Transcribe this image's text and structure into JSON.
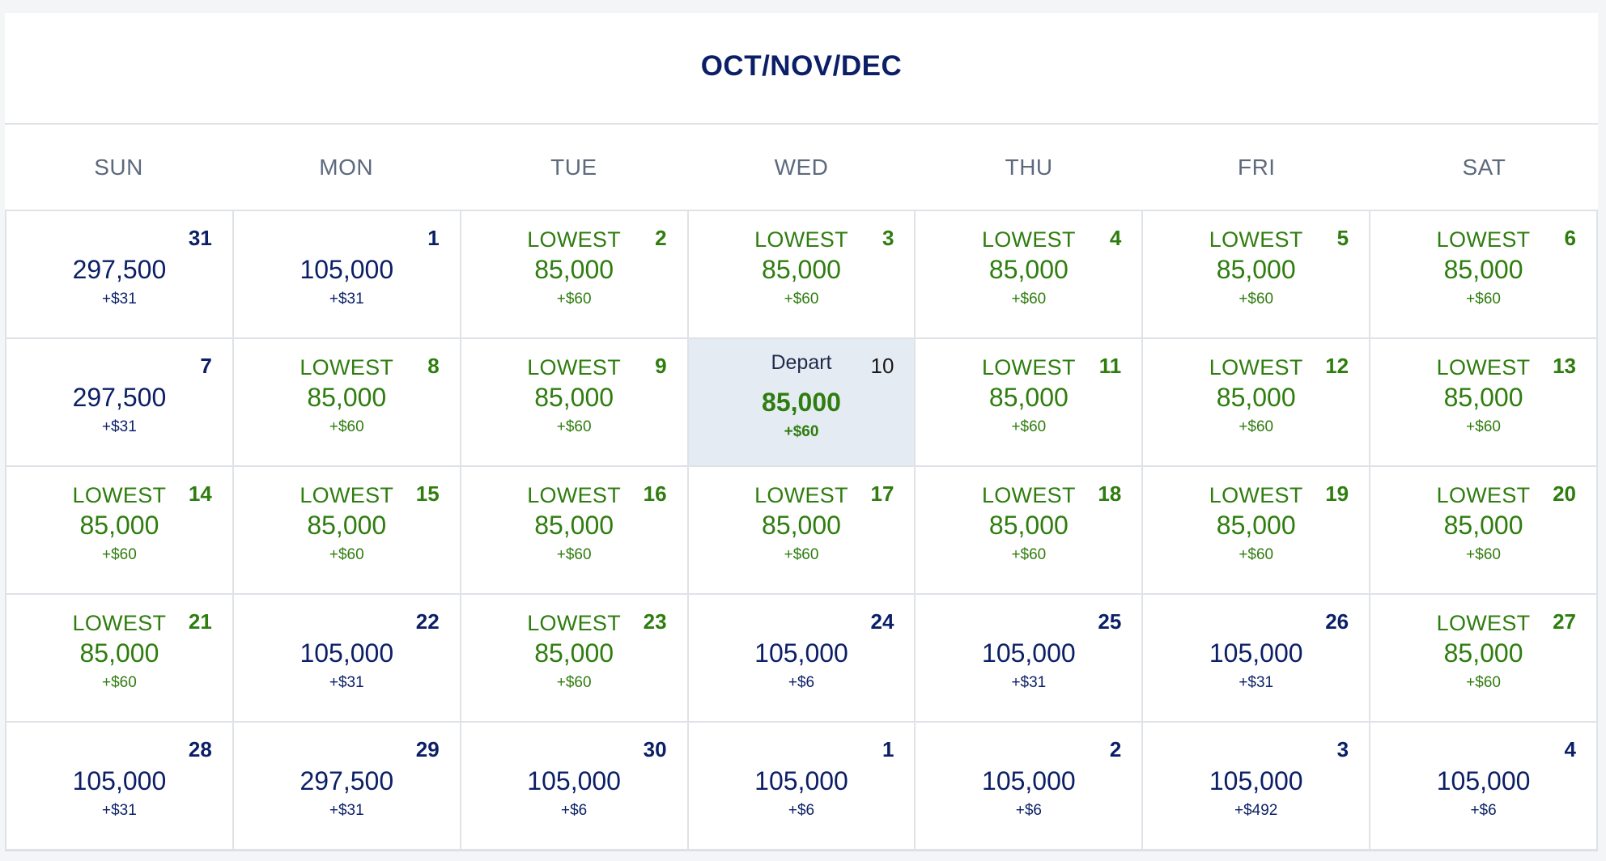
{
  "calendar": {
    "title": "OCT/NOV/DEC",
    "weekdays": [
      "SUN",
      "MON",
      "TUE",
      "WED",
      "THU",
      "FRI",
      "SAT"
    ],
    "lowest_label": "LOWEST",
    "depart_label": "Depart",
    "colors": {
      "title": "#0b1f66",
      "lowest": "#2f7d0f",
      "regular": "#0b1f66",
      "selected_bg": "#e5ebf3"
    },
    "weeks": [
      [
        {
          "day": "31",
          "points": "297,500",
          "fee": "+$31",
          "lowest": false
        },
        {
          "day": "1",
          "points": "105,000",
          "fee": "+$31",
          "lowest": false
        },
        {
          "day": "2",
          "points": "85,000",
          "fee": "+$60",
          "lowest": true
        },
        {
          "day": "3",
          "points": "85,000",
          "fee": "+$60",
          "lowest": true
        },
        {
          "day": "4",
          "points": "85,000",
          "fee": "+$60",
          "lowest": true
        },
        {
          "day": "5",
          "points": "85,000",
          "fee": "+$60",
          "lowest": true
        },
        {
          "day": "6",
          "points": "85,000",
          "fee": "+$60",
          "lowest": true
        }
      ],
      [
        {
          "day": "7",
          "points": "297,500",
          "fee": "+$31",
          "lowest": false
        },
        {
          "day": "8",
          "points": "85,000",
          "fee": "+$60",
          "lowest": true
        },
        {
          "day": "9",
          "points": "85,000",
          "fee": "+$60",
          "lowest": true
        },
        {
          "day": "10",
          "points": "85,000",
          "fee": "+$60",
          "lowest": false,
          "selected": true
        },
        {
          "day": "11",
          "points": "85,000",
          "fee": "+$60",
          "lowest": true
        },
        {
          "day": "12",
          "points": "85,000",
          "fee": "+$60",
          "lowest": true
        },
        {
          "day": "13",
          "points": "85,000",
          "fee": "+$60",
          "lowest": true
        }
      ],
      [
        {
          "day": "14",
          "points": "85,000",
          "fee": "+$60",
          "lowest": true
        },
        {
          "day": "15",
          "points": "85,000",
          "fee": "+$60",
          "lowest": true
        },
        {
          "day": "16",
          "points": "85,000",
          "fee": "+$60",
          "lowest": true
        },
        {
          "day": "17",
          "points": "85,000",
          "fee": "+$60",
          "lowest": true
        },
        {
          "day": "18",
          "points": "85,000",
          "fee": "+$60",
          "lowest": true
        },
        {
          "day": "19",
          "points": "85,000",
          "fee": "+$60",
          "lowest": true
        },
        {
          "day": "20",
          "points": "85,000",
          "fee": "+$60",
          "lowest": true
        }
      ],
      [
        {
          "day": "21",
          "points": "85,000",
          "fee": "+$60",
          "lowest": true
        },
        {
          "day": "22",
          "points": "105,000",
          "fee": "+$31",
          "lowest": false
        },
        {
          "day": "23",
          "points": "85,000",
          "fee": "+$60",
          "lowest": true
        },
        {
          "day": "24",
          "points": "105,000",
          "fee": "+$6",
          "lowest": false
        },
        {
          "day": "25",
          "points": "105,000",
          "fee": "+$31",
          "lowest": false
        },
        {
          "day": "26",
          "points": "105,000",
          "fee": "+$31",
          "lowest": false
        },
        {
          "day": "27",
          "points": "85,000",
          "fee": "+$60",
          "lowest": true
        }
      ],
      [
        {
          "day": "28",
          "points": "105,000",
          "fee": "+$31",
          "lowest": false
        },
        {
          "day": "29",
          "points": "297,500",
          "fee": "+$31",
          "lowest": false
        },
        {
          "day": "30",
          "points": "105,000",
          "fee": "+$6",
          "lowest": false
        },
        {
          "day": "1",
          "points": "105,000",
          "fee": "+$6",
          "lowest": false
        },
        {
          "day": "2",
          "points": "105,000",
          "fee": "+$6",
          "lowest": false
        },
        {
          "day": "3",
          "points": "105,000",
          "fee": "+$492",
          "lowest": false
        },
        {
          "day": "4",
          "points": "105,000",
          "fee": "+$6",
          "lowest": false
        }
      ]
    ]
  }
}
